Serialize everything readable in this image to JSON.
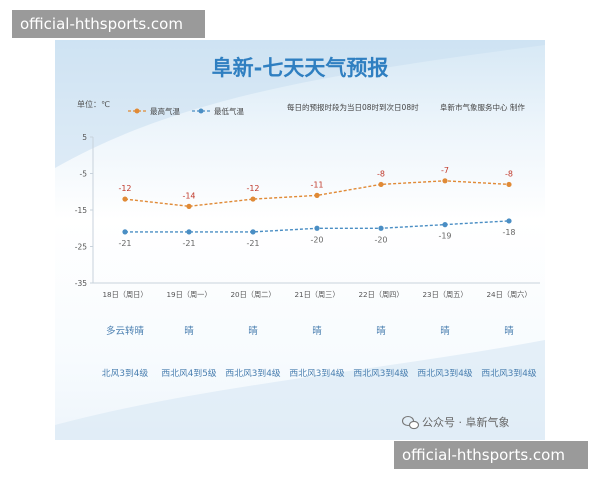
{
  "watermark_top": "official-hthsports.com",
  "watermark_bottom": "official-hthsports.com",
  "footer_credit": "公众号 · 阜新气象",
  "chart_data": {
    "type": "line",
    "title": "阜新-七天天气预报",
    "unit_label": "单位：℃",
    "note_period": "每日的预报时段为当日08时到次日08时",
    "note_maker": "阜新市气象服务中心 制作",
    "categories": [
      "18日（周日）",
      "19日（周一）",
      "20日（周二）",
      "21日（周三）",
      "22日（周四）",
      "23日（周五）",
      "24日（周六）"
    ],
    "ylim": [
      -35,
      5
    ],
    "yticks": [
      5,
      -5,
      -15,
      -25,
      -35
    ],
    "grid": false,
    "legend_position": "top-left",
    "series": [
      {
        "name": "最高气温",
        "color": "#e08a36",
        "label_color": "#c0392b",
        "values": [
          -12,
          -14,
          -12,
          -11,
          -8,
          -7,
          -8
        ]
      },
      {
        "name": "最低气温",
        "color": "#4a8ec4",
        "label_color": "#666666",
        "values": [
          -21,
          -21,
          -21,
          -20,
          -20,
          -19,
          -18
        ]
      }
    ],
    "weather": [
      "多云转晴",
      "晴",
      "晴",
      "晴",
      "晴",
      "晴",
      "晴"
    ],
    "wind": [
      "北风3到4级",
      "西北风4到5级",
      "西北风3到4级",
      "西北风3到4级",
      "西北风3到4级",
      "西北风3到4级",
      "西北风3到4级"
    ]
  }
}
